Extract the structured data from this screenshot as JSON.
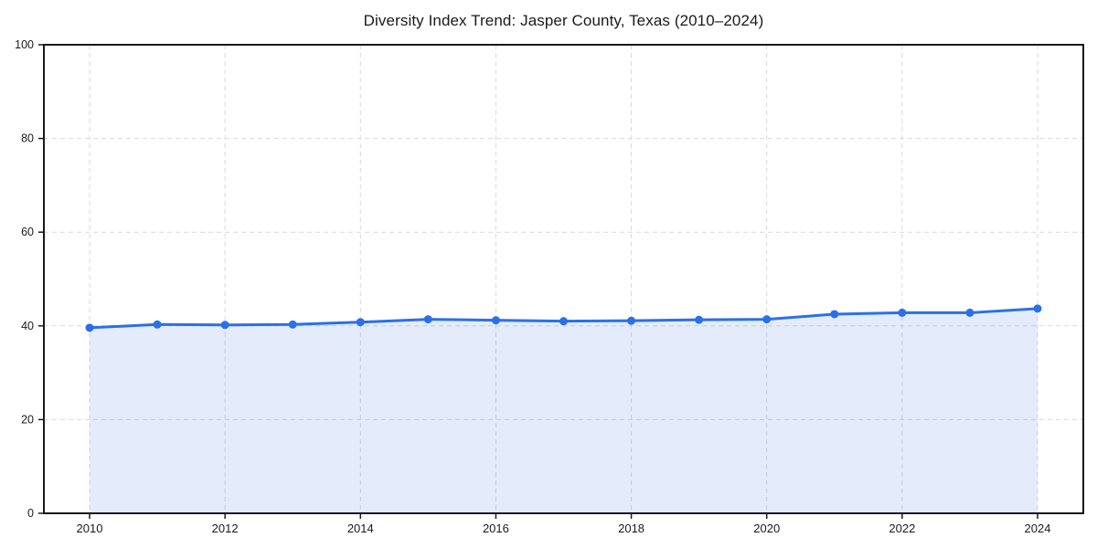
{
  "page": {
    "background": "#ffffff"
  },
  "chart_data": {
    "type": "line",
    "title": "Diversity Index Trend: Jasper County, Texas (2010–2024)",
    "x": [
      2010,
      2011,
      2012,
      2013,
      2014,
      2015,
      2016,
      2017,
      2018,
      2019,
      2020,
      2021,
      2022,
      2023,
      2024
    ],
    "values": [
      39.6,
      40.3,
      40.2,
      40.3,
      40.8,
      41.4,
      41.2,
      41.0,
      41.1,
      41.3,
      41.4,
      42.5,
      42.8,
      42.8,
      43.7
    ],
    "xticks": [
      2010,
      2012,
      2014,
      2016,
      2018,
      2020,
      2022,
      2024
    ],
    "yticks": [
      0,
      20,
      40,
      60,
      80,
      100
    ],
    "ylim": [
      0,
      100
    ],
    "xlabel": "",
    "ylabel": "",
    "legend": "none",
    "grid": "dashed",
    "area_fill": true,
    "markers": "circle",
    "colors": {
      "line": "#2b70e8",
      "marker": "#2b70e8",
      "fill": "rgba(43,112,232,0.13)",
      "grid": "#d9d9d9",
      "frame": "#1a1a1a",
      "tick_label": "#1a1a1a",
      "title": "#1a1a1a"
    }
  }
}
